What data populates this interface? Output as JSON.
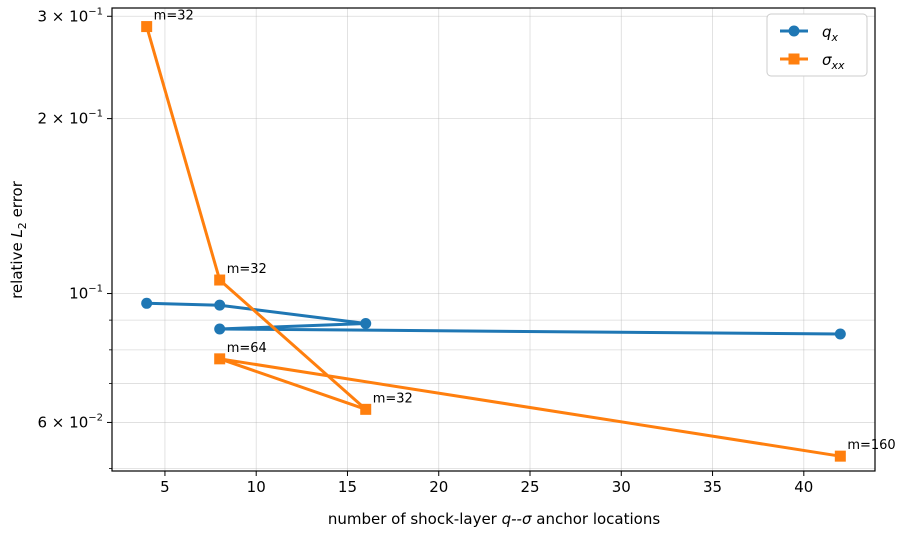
{
  "chart_data": {
    "type": "line",
    "xlabel_prefix": "number of shock-layer ",
    "xlabel_var": "q--σ",
    "xlabel_suffix": " anchor locations",
    "ylabel_prefix": "relative ",
    "ylabel_var": "L",
    "ylabel_sub": "2",
    "ylabel_suffix": " error",
    "y_scale": "log",
    "xlim": [
      2.1,
      43.9
    ],
    "ylim": [
      0.0495,
      0.31
    ],
    "x_ticks": [
      5,
      10,
      15,
      20,
      25,
      30,
      35,
      40
    ],
    "y_major_ticks": [
      {
        "value": 0.06,
        "mant": "6",
        "exp": "−2"
      },
      {
        "value": 0.1,
        "mant": "",
        "exp": "−1"
      },
      {
        "value": 0.2,
        "mant": "2",
        "exp": "−1"
      },
      {
        "value": 0.3,
        "mant": "3",
        "exp": "−1"
      }
    ],
    "y_minor_ticks": [
      0.05,
      0.07,
      0.08,
      0.09
    ],
    "grid": true,
    "legend_placement": "top-right",
    "series": [
      {
        "name": "q_x",
        "name_main": "q",
        "name_sub": "x",
        "color": "#1f77b4",
        "marker": "circle",
        "x": [
          4,
          8,
          16,
          8,
          42
        ],
        "y": [
          0.0962,
          0.0955,
          0.0888,
          0.0869,
          0.0852
        ]
      },
      {
        "name": "σ_xx",
        "name_main": "σ",
        "name_sub": "xx",
        "color": "#ff7f0e",
        "marker": "square",
        "x": [
          4,
          8,
          16,
          8,
          42
        ],
        "y": [
          0.288,
          0.1055,
          0.0632,
          0.0772,
          0.0525
        ]
      }
    ],
    "annotations": [
      {
        "text": "m=32",
        "x": 4,
        "y": 0.288
      },
      {
        "text": "m=32",
        "x": 8,
        "y": 0.1055
      },
      {
        "text": "m=32",
        "x": 16,
        "y": 0.0632
      },
      {
        "text": "m=64",
        "x": 8,
        "y": 0.0772
      },
      {
        "text": "m=160",
        "x": 42,
        "y": 0.0525
      }
    ]
  }
}
